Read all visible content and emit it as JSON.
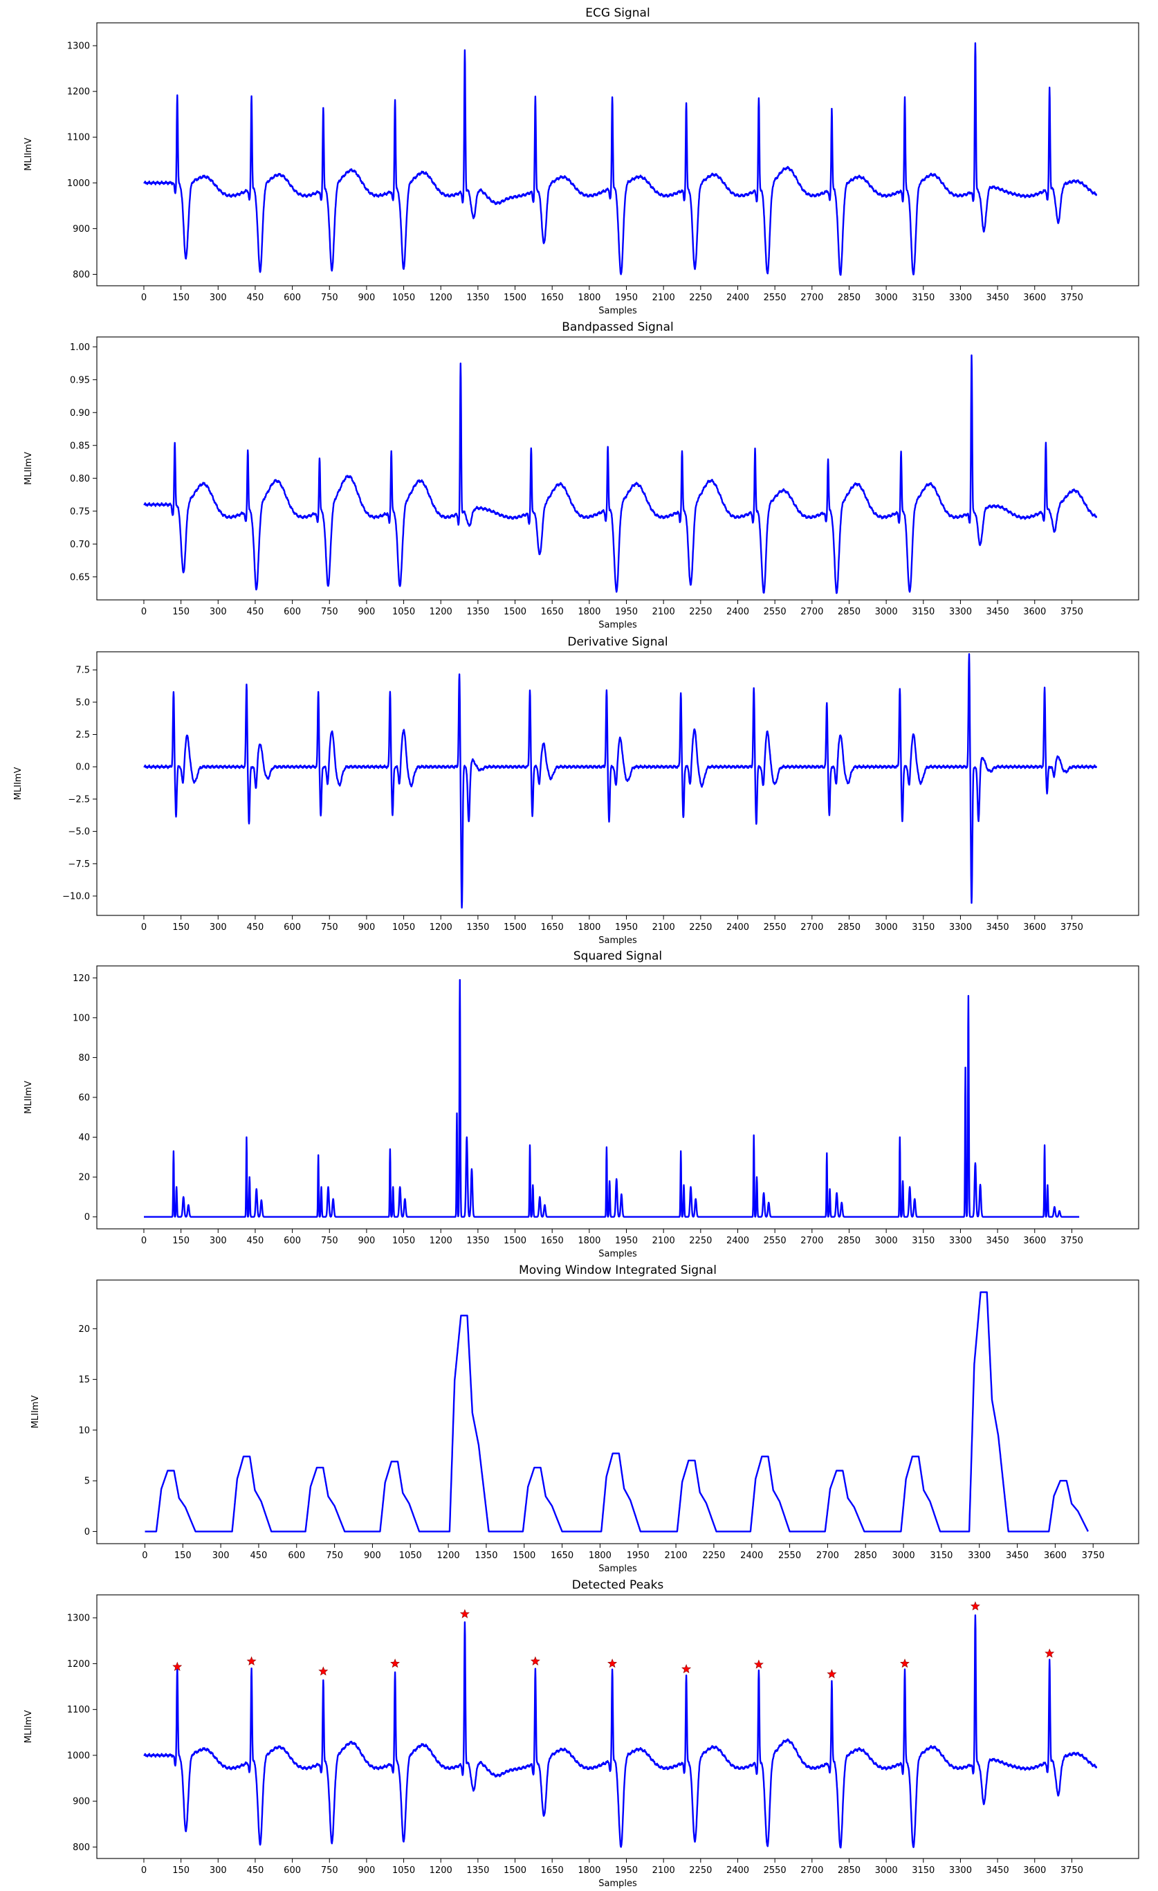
{
  "chart_data": [
    {
      "type": "line",
      "title": "ECG Signal",
      "xlabel": "Samples",
      "ylabel": "MLIImV",
      "xlim": [
        -190,
        4020
      ],
      "ylim": [
        775,
        1350
      ],
      "xticks": [
        0,
        150,
        300,
        450,
        600,
        750,
        900,
        1050,
        1200,
        1350,
        1500,
        1650,
        1800,
        1950,
        2100,
        2250,
        2400,
        2550,
        2700,
        2850,
        3000,
        3150,
        3300,
        3450,
        3600,
        3750
      ],
      "yticks": [
        800,
        900,
        1000,
        1100,
        1200,
        1300
      ],
      "ytick_labels": [
        "800",
        "900",
        "1000",
        "1100",
        "1200",
        "1300"
      ],
      "baseline": 1000,
      "beats": [
        {
          "peak_x": 135,
          "r": 1193,
          "s": 835,
          "t": 1025
        },
        {
          "peak_x": 435,
          "r": 1205,
          "s": 813,
          "t": 1030
        },
        {
          "peak_x": 725,
          "r": 1183,
          "s": 817,
          "t": 1040
        },
        {
          "peak_x": 1015,
          "r": 1200,
          "s": 820,
          "t": 1035
        },
        {
          "peak_x": 1297,
          "r": 1308,
          "s": 935,
          "t": 970
        },
        {
          "peak_x": 1582,
          "r": 1205,
          "s": 875,
          "t": 1025
        },
        {
          "peak_x": 1893,
          "r": 1200,
          "s": 805,
          "t": 1025
        },
        {
          "peak_x": 2192,
          "r": 1188,
          "s": 817,
          "t": 1030
        },
        {
          "peak_x": 2485,
          "r": 1198,
          "s": 807,
          "t": 1045
        },
        {
          "peak_x": 2780,
          "r": 1177,
          "s": 807,
          "t": 1025
        },
        {
          "peak_x": 3075,
          "r": 1200,
          "s": 805,
          "t": 1030
        },
        {
          "peak_x": 3360,
          "r": 1325,
          "s": 905,
          "t": 995
        },
        {
          "peak_x": 3660,
          "r": 1222,
          "s": 920,
          "t": 1015
        }
      ],
      "line_color": "#0000ff"
    },
    {
      "type": "line",
      "title": "Bandpassed Signal",
      "xlabel": "Samples",
      "ylabel": "MLIImV",
      "xlim": [
        -190,
        4020
      ],
      "ylim": [
        0.615,
        1.015
      ],
      "xticks": [
        0,
        150,
        300,
        450,
        600,
        750,
        900,
        1050,
        1200,
        1350,
        1500,
        1650,
        1800,
        1950,
        2100,
        2250,
        2400,
        2550,
        2700,
        2850,
        3000,
        3150,
        3300,
        3450,
        3600,
        3750
      ],
      "yticks": [
        0.65,
        0.7,
        0.75,
        0.8,
        0.85,
        0.9,
        0.95,
        1.0
      ],
      "ytick_labels": [
        "0.65",
        "0.70",
        "0.75",
        "0.80",
        "0.85",
        "0.90",
        "0.95",
        "1.00"
      ],
      "baseline": 0.76,
      "beats": [
        {
          "peak_x": 125,
          "r": 0.855,
          "s": 0.655,
          "t": 0.8
        },
        {
          "peak_x": 420,
          "r": 0.855,
          "s": 0.635,
          "t": 0.805
        },
        {
          "peak_x": 710,
          "r": 0.843,
          "s": 0.64,
          "t": 0.812
        },
        {
          "peak_x": 1000,
          "r": 0.853,
          "s": 0.64,
          "t": 0.805
        },
        {
          "peak_x": 1280,
          "r": 0.987,
          "s": 0.735,
          "t": 0.76
        },
        {
          "peak_x": 1565,
          "r": 0.857,
          "s": 0.688,
          "t": 0.8
        },
        {
          "peak_x": 1875,
          "r": 0.855,
          "s": 0.63,
          "t": 0.8
        },
        {
          "peak_x": 2175,
          "r": 0.85,
          "s": 0.64,
          "t": 0.805
        },
        {
          "peak_x": 2470,
          "r": 0.855,
          "s": 0.63,
          "t": 0.79
        },
        {
          "peak_x": 2765,
          "r": 0.84,
          "s": 0.63,
          "t": 0.8
        },
        {
          "peak_x": 3060,
          "r": 0.85,
          "s": 0.63,
          "t": 0.8
        },
        {
          "peak_x": 3345,
          "r": 1.0,
          "s": 0.705,
          "t": 0.765
        },
        {
          "peak_x": 3645,
          "r": 0.865,
          "s": 0.723,
          "t": 0.79
        }
      ],
      "line_color": "#0000ff"
    },
    {
      "type": "line",
      "title": "Derivative Signal",
      "xlabel": "Samples",
      "ylabel": "MLIImV",
      "xlim": [
        -190,
        4020
      ],
      "ylim": [
        -11.5,
        8.9
      ],
      "xticks": [
        0,
        150,
        300,
        450,
        600,
        750,
        900,
        1050,
        1200,
        1350,
        1500,
        1650,
        1800,
        1950,
        2100,
        2250,
        2400,
        2550,
        2700,
        2850,
        3000,
        3150,
        3300,
        3450,
        3600,
        3750
      ],
      "yticks": [
        -10.0,
        -7.5,
        -5.0,
        -2.5,
        0.0,
        2.5,
        5.0,
        7.5
      ],
      "ytick_labels": [
        "−10.0",
        "−7.5",
        "−5.0",
        "−2.5",
        "0.0",
        "2.5",
        "5.0",
        "7.5"
      ],
      "baseline": 0,
      "beats": [
        {
          "peak_x": 120,
          "r": 5.8,
          "s": -3.8,
          "t": 2.4
        },
        {
          "peak_x": 415,
          "r": 6.4,
          "s": -4.4,
          "t": 1.8
        },
        {
          "peak_x": 705,
          "r": 5.8,
          "s": -3.8,
          "t": 2.8
        },
        {
          "peak_x": 995,
          "r": 5.8,
          "s": -3.8,
          "t": 2.9
        },
        {
          "peak_x": 1275,
          "r": 7.2,
          "s": -10.9,
          "t": 0.5
        },
        {
          "peak_x": 1560,
          "r": 6.0,
          "s": -3.8,
          "t": 1.8
        },
        {
          "peak_x": 1870,
          "r": 5.9,
          "s": -4.2,
          "t": 2.2
        },
        {
          "peak_x": 2170,
          "r": 5.8,
          "s": -4.0,
          "t": 2.9
        },
        {
          "peak_x": 2465,
          "r": 6.1,
          "s": -4.4,
          "t": 2.7
        },
        {
          "peak_x": 2760,
          "r": 5.0,
          "s": -3.8,
          "t": 2.5
        },
        {
          "peak_x": 3055,
          "r": 6.1,
          "s": -4.2,
          "t": 2.5
        },
        {
          "peak_x": 3335,
          "r": 8.7,
          "s": -10.5,
          "t": 0.7
        },
        {
          "peak_x": 3640,
          "r": 6.1,
          "s": -2.0,
          "t": 0.8
        }
      ],
      "line_color": "#0000ff"
    },
    {
      "type": "line",
      "title": "Squared Signal",
      "xlabel": "Samples",
      "ylabel": "MLIImV",
      "xlim": [
        -190,
        4020
      ],
      "ylim": [
        -6,
        126
      ],
      "xticks": [
        0,
        150,
        300,
        450,
        600,
        750,
        900,
        1050,
        1200,
        1350,
        1500,
        1650,
        1800,
        1950,
        2100,
        2250,
        2400,
        2550,
        2700,
        2850,
        3000,
        3150,
        3300,
        3450,
        3600,
        3750
      ],
      "yticks": [
        0,
        20,
        40,
        60,
        80,
        100,
        120
      ],
      "ytick_labels": [
        "0",
        "20",
        "40",
        "60",
        "80",
        "100",
        "120"
      ],
      "baseline": 0,
      "beats": [
        {
          "peak_x": 120,
          "r": 33,
          "s": 15,
          "t": 10
        },
        {
          "peak_x": 415,
          "r": 40,
          "s": 20,
          "t": 14
        },
        {
          "peak_x": 705,
          "r": 31,
          "s": 15,
          "t": 15
        },
        {
          "peak_x": 995,
          "r": 34,
          "s": 15,
          "t": 15
        },
        {
          "peak_x": 1265,
          "r": 52,
          "s": 119,
          "t": 40
        },
        {
          "peak_x": 1560,
          "r": 36,
          "s": 16,
          "t": 10
        },
        {
          "peak_x": 1870,
          "r": 35,
          "s": 18,
          "t": 19
        },
        {
          "peak_x": 2170,
          "r": 33,
          "s": 16,
          "t": 15
        },
        {
          "peak_x": 2465,
          "r": 41,
          "s": 20,
          "t": 12
        },
        {
          "peak_x": 2760,
          "r": 32,
          "s": 14,
          "t": 12
        },
        {
          "peak_x": 3055,
          "r": 40,
          "s": 18,
          "t": 15
        },
        {
          "peak_x": 3320,
          "r": 75,
          "s": 111,
          "t": 27
        },
        {
          "peak_x": 3640,
          "r": 36,
          "s": 16,
          "t": 5
        }
      ],
      "line_color": "#0000ff"
    },
    {
      "type": "line",
      "title": "Moving Window Integrated Signal",
      "xlabel": "Samples",
      "ylabel": "MLIImV",
      "xlim": [
        -190,
        3930
      ],
      "ylim": [
        -1.2,
        24.8
      ],
      "xticks": [
        0,
        150,
        300,
        450,
        600,
        750,
        900,
        1050,
        1200,
        1350,
        1500,
        1650,
        1800,
        1950,
        2100,
        2250,
        2400,
        2550,
        2700,
        2850,
        3000,
        3150,
        3300,
        3450,
        3600,
        3750
      ],
      "yticks": [
        0,
        5,
        10,
        15,
        20
      ],
      "ytick_labels": [
        "0",
        "5",
        "10",
        "15",
        "20"
      ],
      "baseline": 0,
      "pulses": [
        {
          "x": 90,
          "peak": 6.0
        },
        {
          "x": 390,
          "peak": 7.4
        },
        {
          "x": 680,
          "peak": 6.3
        },
        {
          "x": 975,
          "peak": 6.9
        },
        {
          "x": 1250,
          "peak": 21.3
        },
        {
          "x": 1540,
          "peak": 6.3
        },
        {
          "x": 1850,
          "peak": 7.7
        },
        {
          "x": 2150,
          "peak": 7.0
        },
        {
          "x": 2440,
          "peak": 7.4
        },
        {
          "x": 2735,
          "peak": 6.0
        },
        {
          "x": 3035,
          "peak": 7.4
        },
        {
          "x": 3305,
          "peak": 23.6
        },
        {
          "x": 3620,
          "peak": 5.0
        }
      ],
      "line_color": "#0000ff"
    },
    {
      "type": "line",
      "title": "Detected Peaks",
      "xlabel": "Samples",
      "ylabel": "MLIImV",
      "xlim": [
        -190,
        4020
      ],
      "ylim": [
        775,
        1350
      ],
      "xticks": [
        0,
        150,
        300,
        450,
        600,
        750,
        900,
        1050,
        1200,
        1350,
        1500,
        1650,
        1800,
        1950,
        2100,
        2250,
        2400,
        2550,
        2700,
        2850,
        3000,
        3150,
        3300,
        3450,
        3600,
        3750
      ],
      "yticks": [
        800,
        900,
        1000,
        1100,
        1200,
        1300
      ],
      "ytick_labels": [
        "800",
        "900",
        "1000",
        "1100",
        "1200",
        "1300"
      ],
      "baseline": 1000,
      "beats": [
        {
          "peak_x": 135,
          "r": 1193,
          "s": 835,
          "t": 1025
        },
        {
          "peak_x": 435,
          "r": 1205,
          "s": 813,
          "t": 1030
        },
        {
          "peak_x": 725,
          "r": 1183,
          "s": 817,
          "t": 1040
        },
        {
          "peak_x": 1015,
          "r": 1200,
          "s": 820,
          "t": 1035
        },
        {
          "peak_x": 1297,
          "r": 1308,
          "s": 935,
          "t": 970
        },
        {
          "peak_x": 1582,
          "r": 1205,
          "s": 875,
          "t": 1025
        },
        {
          "peak_x": 1893,
          "r": 1200,
          "s": 805,
          "t": 1025
        },
        {
          "peak_x": 2192,
          "r": 1188,
          "s": 817,
          "t": 1030
        },
        {
          "peak_x": 2485,
          "r": 1198,
          "s": 807,
          "t": 1045
        },
        {
          "peak_x": 2780,
          "r": 1177,
          "s": 807,
          "t": 1025
        },
        {
          "peak_x": 3075,
          "r": 1200,
          "s": 805,
          "t": 1030
        },
        {
          "peak_x": 3360,
          "r": 1325,
          "s": 905,
          "t": 995
        },
        {
          "peak_x": 3660,
          "r": 1222,
          "s": 920,
          "t": 1015
        }
      ],
      "detected_peaks": [
        {
          "x": 135,
          "y": 1193
        },
        {
          "x": 435,
          "y": 1205
        },
        {
          "x": 725,
          "y": 1183
        },
        {
          "x": 1015,
          "y": 1200
        },
        {
          "x": 1297,
          "y": 1308
        },
        {
          "x": 1582,
          "y": 1205
        },
        {
          "x": 1893,
          "y": 1200
        },
        {
          "x": 2192,
          "y": 1188
        },
        {
          "x": 2485,
          "y": 1198
        },
        {
          "x": 2780,
          "y": 1177
        },
        {
          "x": 3075,
          "y": 1200
        },
        {
          "x": 3360,
          "y": 1325
        },
        {
          "x": 3660,
          "y": 1222
        }
      ],
      "line_color": "#0000ff",
      "marker_color": "#ff0000",
      "marker": "star"
    }
  ]
}
